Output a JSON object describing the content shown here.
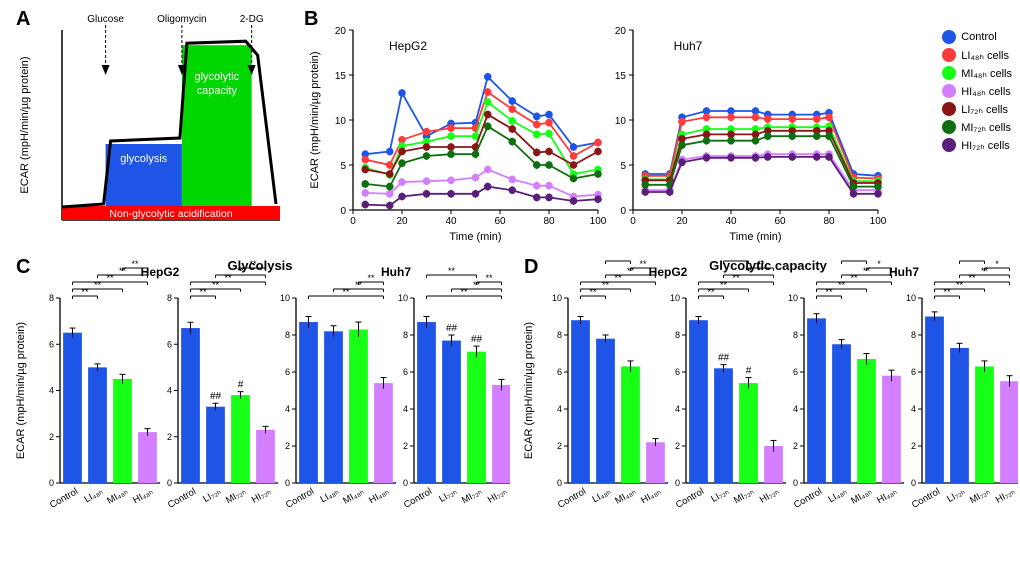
{
  "labels": {
    "panelA": "A",
    "panelB": "B",
    "panelC": "C",
    "panelD": "D",
    "y_ecar": "ECAR (mpH/min/µg protein)",
    "x_time": "Time (min)",
    "title_glycolysis": "Glycolysis",
    "title_cap": "Glycolytic capacity",
    "hepg2": "HepG2",
    "huh7": "Huh7",
    "a_glucose": "Glucose",
    "a_oligo": "Oligomycin",
    "a_2dg": "2-DG",
    "a_glycolysis": "glycolysis",
    "a_cap": "glycolytic\ncapacity",
    "a_nonglyc": "Non-glycolytic acidification"
  },
  "legend_b": [
    {
      "label": "Control",
      "color": "#1f55e6"
    },
    {
      "label": "LI₄₈ₕ cells",
      "color": "#ff3b3b"
    },
    {
      "label": "MI₄₈ₕ cells",
      "color": "#17ff17"
    },
    {
      "label": "HI₄₈ₕ cells",
      "color": "#d37fff"
    },
    {
      "label": "LI₇₂ₕ cells",
      "color": "#8a1515"
    },
    {
      "label": "MI₇₂ₕ cells",
      "color": "#0e6f0e"
    },
    {
      "label": "HI₇₂ₕ cells",
      "color": "#5a1e7b"
    }
  ],
  "panelB": {
    "xlim": [
      0,
      100
    ],
    "ylim": [
      0,
      20
    ],
    "ytick_step": 5,
    "x": [
      5,
      15,
      20,
      30,
      40,
      50,
      55,
      65,
      75,
      80,
      90,
      100
    ],
    "hepg2": {
      "Control": [
        6.2,
        6.5,
        13,
        8.2,
        9.6,
        9.7,
        14.8,
        12.1,
        10.4,
        10.6,
        7,
        7.5
      ],
      "LI48": [
        5.6,
        5,
        7.8,
        8.7,
        9.1,
        9.1,
        13.1,
        11.2,
        9.5,
        9.7,
        6,
        7.5
      ],
      "MI48": [
        4.7,
        3.9,
        7.1,
        7.6,
        8.2,
        8.2,
        12,
        9.9,
        8.4,
        8.5,
        4,
        4.5
      ],
      "HI48": [
        1.9,
        1.8,
        3.1,
        3.2,
        3.3,
        3.6,
        4.5,
        3.4,
        2.7,
        2.7,
        1.5,
        1.7
      ],
      "LI72": [
        4.5,
        4,
        6.5,
        7,
        7,
        7,
        10.6,
        9,
        6.4,
        6.5,
        5,
        6.5
      ],
      "MI72": [
        2.9,
        2.6,
        5.2,
        6,
        6.2,
        6.2,
        9.3,
        7.6,
        5,
        5,
        3.5,
        4
      ],
      "HI72": [
        0.6,
        0.5,
        1.5,
        1.8,
        1.8,
        1.8,
        2.6,
        2.2,
        1.4,
        1.4,
        1,
        1.2
      ]
    },
    "huh7": {
      "Control": [
        4,
        4,
        10.3,
        11,
        11,
        11,
        10.6,
        10.6,
        10.6,
        10.8,
        4,
        3.8
      ],
      "LI48": [
        3.8,
        3.8,
        9.8,
        10.3,
        10.3,
        10.3,
        10.1,
        10.1,
        10.1,
        10.3,
        3.6,
        3.5
      ],
      "MI48": [
        3.4,
        3.4,
        8.4,
        9,
        9,
        9,
        9.2,
        9.2,
        9.2,
        9.3,
        3.2,
        3.2
      ],
      "HI48": [
        2.2,
        2.2,
        5.6,
        6,
        6,
        6,
        6.2,
        6.2,
        6.2,
        6.2,
        2.2,
        2.2
      ],
      "LI72": [
        3.3,
        3.3,
        7.9,
        8.4,
        8.4,
        8.4,
        8.8,
        8.8,
        8.8,
        8.8,
        3,
        3
      ],
      "MI72": [
        2.8,
        2.8,
        7.2,
        7.7,
        7.7,
        7.7,
        8.2,
        8.2,
        8.2,
        8.2,
        2.6,
        2.6
      ],
      "HI72": [
        2,
        2,
        5.3,
        5.8,
        5.8,
        5.8,
        5.9,
        5.9,
        5.9,
        5.9,
        1.8,
        1.8
      ]
    },
    "colors": {
      "Control": "#1f55e6",
      "LI48": "#ff3b3b",
      "MI48": "#17ff17",
      "HI48": "#d37fff",
      "LI72": "#8a1515",
      "MI72": "#0e6f0e",
      "HI72": "#5a1e7b"
    }
  },
  "bar_categories": [
    "Control",
    "LI₄₈ₕ",
    "MI₄₈ₕ",
    "HI₄₈ₕ"
  ],
  "bar_categories_72": [
    "Control",
    "LI₇₂ₕ",
    "MI₇₂ₕ",
    "HI₇₂ₕ"
  ],
  "bar_colors": [
    "#1f55e6",
    "#1f55e6",
    "#17ff17",
    "#d37fff"
  ],
  "bars": {
    "C": {
      "hepg2_48": {
        "vals": [
          6.5,
          5.0,
          4.5,
          2.2
        ],
        "err": [
          0.2,
          0.15,
          0.2,
          0.15
        ],
        "sig": [
          [
            "**",
            0,
            1
          ],
          [
            "**",
            0,
            2
          ],
          [
            "**",
            0,
            3
          ],
          [
            "**",
            1,
            3
          ],
          [
            "**",
            2,
            3
          ]
        ],
        "ymax": 8
      },
      "hepg2_72": {
        "vals": [
          6.7,
          3.3,
          3.8,
          2.3
        ],
        "err": [
          0.25,
          0.15,
          0.15,
          0.15
        ],
        "sig": [
          [
            "**",
            0,
            1
          ],
          [
            "**",
            0,
            2
          ],
          [
            "**",
            0,
            3
          ],
          [
            "**",
            1,
            3
          ],
          [
            "**",
            2,
            3
          ]
        ],
        "hash": [
          "##",
          1,
          "#",
          2
        ],
        "ymax": 8
      },
      "huh7_48": {
        "vals": [
          8.7,
          8.2,
          8.3,
          5.4
        ],
        "err": [
          0.3,
          0.3,
          0.4,
          0.3
        ],
        "sig": [
          [
            "**",
            0,
            3
          ],
          [
            "**",
            1,
            3
          ],
          [
            "**",
            2,
            3
          ]
        ],
        "ymax": 10
      },
      "huh7_72": {
        "vals": [
          8.7,
          7.7,
          7.1,
          5.3
        ],
        "err": [
          0.3,
          0.3,
          0.3,
          0.3
        ],
        "sig": [
          [
            "**",
            0,
            3
          ],
          [
            "**",
            1,
            3
          ],
          [
            "**",
            2,
            3
          ],
          [
            "**",
            0,
            2
          ]
        ],
        "hash": [
          "##",
          1,
          "##",
          2
        ],
        "ymax": 10
      }
    },
    "D": {
      "hepg2_48": {
        "vals": [
          8.8,
          7.8,
          6.3,
          2.2
        ],
        "err": [
          0.2,
          0.2,
          0.3,
          0.2
        ],
        "sig": [
          [
            "**",
            0,
            1
          ],
          [
            "**",
            0,
            2
          ],
          [
            "**",
            0,
            3
          ],
          [
            "**",
            1,
            3
          ],
          [
            "**",
            2,
            3
          ],
          [
            "**",
            1,
            2
          ]
        ],
        "ymax": 10
      },
      "hepg2_72": {
        "vals": [
          8.8,
          6.2,
          5.4,
          2.0
        ],
        "err": [
          0.2,
          0.2,
          0.3,
          0.3
        ],
        "sig": [
          [
            "**",
            0,
            1
          ],
          [
            "**",
            0,
            2
          ],
          [
            "**",
            0,
            3
          ],
          [
            "**",
            1,
            3
          ],
          [
            "**",
            2,
            3
          ],
          [
            "*",
            1,
            2
          ]
        ],
        "hash": [
          "##",
          1,
          "#",
          2
        ],
        "ymax": 10
      },
      "huh7_48": {
        "vals": [
          8.9,
          7.5,
          6.7,
          5.8
        ],
        "err": [
          0.25,
          0.25,
          0.3,
          0.3
        ],
        "sig": [
          [
            "**",
            0,
            1
          ],
          [
            "**",
            0,
            2
          ],
          [
            "**",
            0,
            3
          ],
          [
            "**",
            1,
            3
          ],
          [
            "*",
            2,
            3
          ],
          [
            "*",
            1,
            2
          ]
        ],
        "ymax": 10
      },
      "huh7_72": {
        "vals": [
          9.0,
          7.3,
          6.3,
          5.5
        ],
        "err": [
          0.25,
          0.25,
          0.3,
          0.3
        ],
        "sig": [
          [
            "**",
            0,
            1
          ],
          [
            "**",
            0,
            2
          ],
          [
            "**",
            0,
            3
          ],
          [
            "**",
            1,
            3
          ],
          [
            "*",
            2,
            3
          ],
          [
            "**",
            1,
            2
          ]
        ],
        "ymax": 10
      }
    }
  }
}
